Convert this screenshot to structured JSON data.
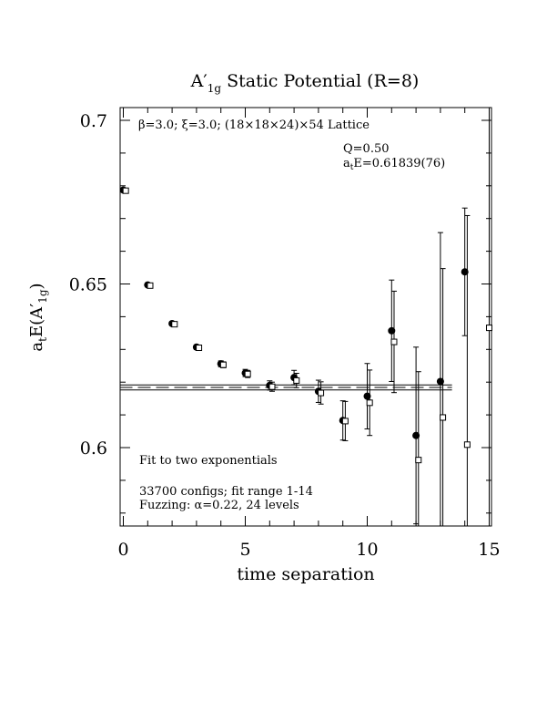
{
  "chart_data": {
    "type": "scatter",
    "title": "A′1g Static Potential (R=8)",
    "title_parts": {
      "a": "A",
      "prime": "′",
      "sub": "1g",
      "rest": " Static Potential (R=8)"
    },
    "xlabel": "time separation",
    "ylabel": "atE(A′1g)",
    "ylabel_parts": {
      "a": "a",
      "t": "t",
      "mid": "E(A",
      "prime": "′",
      "sub": "1g",
      "close": ")"
    },
    "xlim": [
      0,
      15
    ],
    "ylim": [
      0.575,
      0.704
    ],
    "x_ticks": [
      0,
      5,
      10,
      15
    ],
    "x_tick_labels": [
      "0",
      "5",
      "10",
      "15"
    ],
    "y_ticks": [
      0.6,
      0.65,
      0.7
    ],
    "y_tick_labels": [
      "0.6",
      "0.65",
      "0.7"
    ],
    "grid": false,
    "annotations": {
      "lattice": "β=3.0; ξ=3.0; (18×18×24)×54 Lattice",
      "q": "Q=0.50",
      "energy_parts": {
        "a": "a",
        "t": "t",
        "rest": "E=0.61839(76)"
      },
      "fit": "Fit to two exponentials",
      "configs": "33700 configs; fit range 1-14",
      "fuzzing": "Fuzzing: α=0.22, 24 levels"
    },
    "fit_line": {
      "center": 0.61839,
      "error": 0.00076,
      "x_range": [
        0,
        13.4
      ]
    },
    "series": [
      {
        "marker": "filled-circle",
        "x": [
          0,
          1,
          2,
          3,
          4,
          5,
          6,
          7,
          8,
          9,
          10,
          11,
          12,
          13,
          14
        ],
        "y": [
          0.6787,
          0.6497,
          0.6379,
          0.6307,
          0.6256,
          0.6228,
          0.619,
          0.6214,
          0.6172,
          0.6083,
          0.6157,
          0.6357,
          0.6037,
          0.6202,
          0.6537
        ],
        "err": [
          0.0004,
          0.0005,
          0.0006,
          0.0007,
          0.0009,
          0.0011,
          0.0014,
          0.0022,
          0.0034,
          0.006,
          0.01,
          0.0155,
          0.027,
          0.0455,
          0.0195
        ]
      },
      {
        "marker": "open-square",
        "x": [
          0.1,
          1.1,
          2.1,
          3.1,
          4.1,
          5.1,
          6.1,
          7.1,
          8.1,
          9.1,
          10.1,
          11.1,
          12.1,
          13.1,
          14.1,
          15.0
        ],
        "y": [
          0.6785,
          0.6495,
          0.6377,
          0.6305,
          0.6253,
          0.6225,
          0.6186,
          0.6205,
          0.6167,
          0.6081,
          0.6137,
          0.6323,
          0.5962,
          0.6092,
          0.6009,
          0.6366
        ],
        "err": [
          0.0004,
          0.0005,
          0.0006,
          0.0007,
          0.0009,
          0.0011,
          0.0014,
          0.0022,
          0.0034,
          0.006,
          0.01,
          0.0155,
          0.027,
          0.0455,
          0.07,
          0.08
        ]
      }
    ]
  }
}
